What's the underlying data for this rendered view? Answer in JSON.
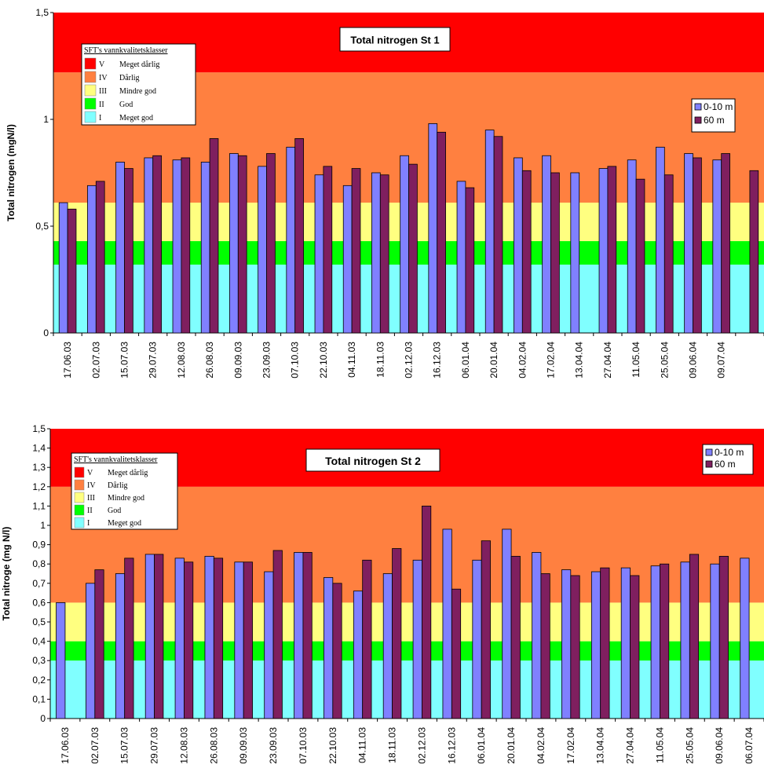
{
  "colors": {
    "band_V": "#ff0000",
    "band_IV": "#ff8040",
    "band_III": "#ffff80",
    "band_II": "#00ff00",
    "band_I": "#80ffff",
    "series_0_10": "#8080ff",
    "series_60": "#7f1f5f"
  },
  "chart_data": [
    {
      "type": "bar",
      "title": "Total nitrogen St 1",
      "ylabel": "Total nitrogen (mgN/l)",
      "xlabel": "",
      "ylim": [
        0,
        1.5
      ],
      "yticks": [
        0,
        0.5,
        1,
        1.5
      ],
      "ytick_labels": [
        "0",
        "0,5",
        "1",
        "1,5"
      ],
      "grid": false,
      "legend_position": "top-right",
      "categories": [
        "17.06.03",
        "02.07.03",
        "15.07.03",
        "29.07.03",
        "12.08.03",
        "26.08.03",
        "09.09.03",
        "23.09.03",
        "07.10.03",
        "22.10.03",
        "04.11.03",
        "18.11.03",
        "02.12.03",
        "16.12.03",
        "06.01.04",
        "20.01.04",
        "04.02.04",
        "17.02.04",
        "13.04.04",
        "27.04.04",
        "11.05.04",
        "25.05.04",
        "09.06.04",
        "09.07.04",
        ""
      ],
      "series": [
        {
          "name": "0-10 m",
          "values": [
            0.61,
            0.69,
            0.8,
            0.82,
            0.81,
            0.8,
            0.84,
            0.78,
            0.87,
            0.74,
            0.69,
            0.75,
            0.83,
            0.98,
            0.71,
            0.95,
            0.82,
            0.83,
            0.75,
            0.77,
            0.81,
            0.87,
            0.84,
            0.81,
            null
          ]
        },
        {
          "name": "60 m",
          "values": [
            0.58,
            0.71,
            0.77,
            0.83,
            0.82,
            0.91,
            0.83,
            0.84,
            0.91,
            0.78,
            0.77,
            0.74,
            0.79,
            0.94,
            0.68,
            0.92,
            0.76,
            0.75,
            null,
            0.78,
            0.72,
            0.74,
            0.82,
            0.84,
            0.76
          ]
        }
      ],
      "quality_classes": {
        "title": "SFT's vannkvalitetsklasser",
        "items": [
          {
            "code": "V",
            "label": "Meget dårlig"
          },
          {
            "code": "IV",
            "label": "Dårlig"
          },
          {
            "code": "III",
            "label": "Mindre god"
          },
          {
            "code": "II",
            "label": "God"
          },
          {
            "code": "I",
            "label": "Meget god"
          }
        ],
        "thresholds": [
          0,
          0.32,
          0.43,
          0.61,
          1.22,
          1.5
        ]
      }
    },
    {
      "type": "bar",
      "title": "Total nitrogen St 2",
      "ylabel": "Total nitroge (mg N/l)",
      "xlabel": "",
      "ylim": [
        0,
        1.5
      ],
      "yticks": [
        0,
        0.1,
        0.2,
        0.3,
        0.4,
        0.5,
        0.6,
        0.7,
        0.8,
        0.9,
        1,
        1.1,
        1.2,
        1.3,
        1.4,
        1.5
      ],
      "ytick_labels": [
        "0",
        "0,1",
        "0,2",
        "0,3",
        "0,4",
        "0,5",
        "0,6",
        "0,7",
        "0,8",
        "0,9",
        "1",
        "1,1",
        "1,2",
        "1,3",
        "1,4",
        "1,5"
      ],
      "grid": false,
      "legend_position": "top-right",
      "categories": [
        "17.06.03",
        "02.07.03",
        "15.07.03",
        "29.07.03",
        "12.08.03",
        "26.08.03",
        "09.09.03",
        "23.09.03",
        "07.10.03",
        "22.10.03",
        "04.11.03",
        "18.11.03",
        "02.12.03",
        "16.12.03",
        "06.01.04",
        "20.01.04",
        "04.02.04",
        "17.02.04",
        "13.04.04",
        "27.04.04",
        "11.05.04",
        "25.05.04",
        "09.06.04",
        "06.07.04"
      ],
      "series": [
        {
          "name": "0-10 m",
          "values": [
            0.6,
            0.7,
            0.75,
            0.85,
            0.83,
            0.84,
            0.81,
            0.76,
            0.86,
            0.73,
            0.66,
            0.75,
            0.82,
            0.98,
            0.82,
            0.98,
            0.86,
            0.77,
            0.76,
            0.78,
            0.79,
            0.81,
            0.8,
            0.83
          ]
        },
        {
          "name": "60 m",
          "values": [
            null,
            0.77,
            0.83,
            0.85,
            0.81,
            0.83,
            0.81,
            0.87,
            0.86,
            0.7,
            0.82,
            0.88,
            1.1,
            0.67,
            0.92,
            0.84,
            0.75,
            0.74,
            0.78,
            0.74,
            0.8,
            0.85,
            0.84,
            null
          ]
        }
      ],
      "quality_classes": {
        "title": "SFT's vannkvalitetsklasser",
        "items": [
          {
            "code": "V",
            "label": "Meget dårlig"
          },
          {
            "code": "IV",
            "label": "Dårlig"
          },
          {
            "code": "III",
            "label": "Mindre god"
          },
          {
            "code": "II",
            "label": "God"
          },
          {
            "code": "I",
            "label": "Meget god"
          }
        ],
        "thresholds": [
          0,
          0.3,
          0.4,
          0.6,
          1.2,
          1.5
        ]
      }
    }
  ]
}
